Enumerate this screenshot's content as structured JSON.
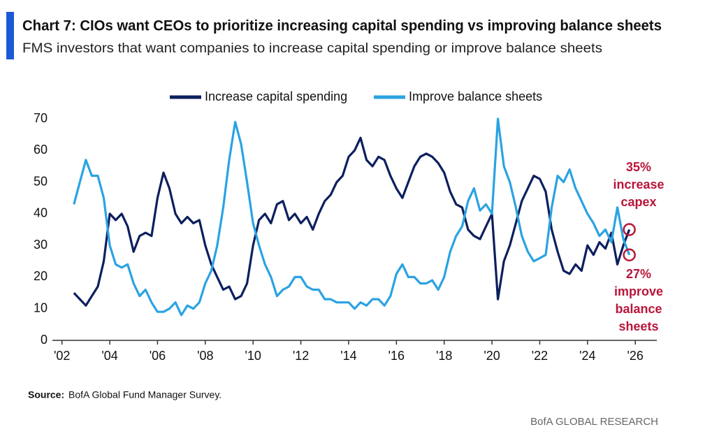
{
  "chart_data": {
    "type": "line",
    "title": "Chart 7: CIOs want CEOs to prioritize increasing capital spending vs improving balance sheets",
    "subtitle": "FMS investors that want companies to increase capital spending or improve balance sheets",
    "x": [
      2002.5,
      2002.75,
      2003,
      2003.25,
      2003.5,
      2003.75,
      2004,
      2004.25,
      2004.5,
      2004.75,
      2005,
      2005.25,
      2005.5,
      2005.75,
      2006,
      2006.25,
      2006.5,
      2006.75,
      2007,
      2007.25,
      2007.5,
      2007.75,
      2008,
      2008.25,
      2008.5,
      2008.75,
      2009,
      2009.25,
      2009.5,
      2009.75,
      2010,
      2010.25,
      2010.5,
      2010.75,
      2011,
      2011.25,
      2011.5,
      2011.75,
      2012,
      2012.25,
      2012.5,
      2012.75,
      2013,
      2013.25,
      2013.5,
      2013.75,
      2014,
      2014.25,
      2014.5,
      2014.75,
      2015,
      2015.25,
      2015.5,
      2015.75,
      2016,
      2016.25,
      2016.5,
      2016.75,
      2017,
      2017.25,
      2017.5,
      2017.75,
      2018,
      2018.25,
      2018.5,
      2018.75,
      2019,
      2019.25,
      2019.5,
      2019.75,
      2020,
      2020.25,
      2020.5,
      2020.75,
      2021,
      2021.25,
      2021.5,
      2021.75,
      2022,
      2022.25,
      2022.5,
      2022.75,
      2023,
      2023.25,
      2023.5,
      2023.75,
      2024,
      2024.25,
      2024.5,
      2024.75,
      2025,
      2025.25,
      2025.5,
      2025.75
    ],
    "series": [
      {
        "name": "Increase capital spending",
        "color": "#0c1f5e",
        "values": [
          15,
          13,
          11,
          14,
          17,
          25,
          40,
          38,
          40,
          36,
          28,
          33,
          34,
          33,
          45,
          53,
          48,
          40,
          37,
          39,
          37,
          38,
          30,
          24,
          20,
          16,
          17,
          13,
          14,
          18,
          30,
          38,
          40,
          37,
          43,
          44,
          38,
          40,
          37,
          39,
          35,
          40,
          44,
          46,
          50,
          52,
          58,
          60,
          64,
          57,
          55,
          58,
          57,
          52,
          48,
          45,
          50,
          55,
          58,
          59,
          58,
          56,
          53,
          47,
          43,
          42,
          35,
          33,
          32,
          36,
          40,
          13,
          25,
          30,
          37,
          44,
          48,
          52,
          51,
          47,
          35,
          28,
          22,
          21,
          24,
          22,
          30,
          27,
          31,
          29,
          34,
          24,
          30,
          35
        ]
      },
      {
        "name": "Improve balance sheets",
        "color": "#2aa3e2",
        "values": [
          43,
          50,
          57,
          52,
          52,
          45,
          30,
          24,
          23,
          24,
          18,
          14,
          16,
          12,
          9,
          9,
          10,
          12,
          8,
          11,
          10,
          12,
          18,
          22,
          30,
          42,
          57,
          69,
          62,
          50,
          37,
          30,
          24,
          20,
          14,
          16,
          17,
          20,
          20,
          17,
          16,
          16,
          13,
          13,
          12,
          12,
          12,
          10,
          12,
          11,
          13,
          13,
          11,
          14,
          21,
          24,
          20,
          20,
          18,
          18,
          19,
          16,
          20,
          28,
          33,
          36,
          44,
          48,
          41,
          43,
          40,
          70,
          55,
          50,
          42,
          33,
          28,
          25,
          26,
          27,
          42,
          52,
          50,
          54,
          48,
          44,
          40,
          37,
          33,
          35,
          31,
          42,
          32,
          27
        ]
      }
    ],
    "xlim": [
      2001.6,
      2026.9
    ],
    "xticks": [
      {
        "value": 2002,
        "label": "'02"
      },
      {
        "value": 2004,
        "label": "'04"
      },
      {
        "value": 2006,
        "label": "'06"
      },
      {
        "value": 2008,
        "label": "'08"
      },
      {
        "value": 2010,
        "label": "'10"
      },
      {
        "value": 2012,
        "label": "'12"
      },
      {
        "value": 2014,
        "label": "'14"
      },
      {
        "value": 2016,
        "label": "'16"
      },
      {
        "value": 2018,
        "label": "'18"
      },
      {
        "value": 2020,
        "label": "'20"
      },
      {
        "value": 2022,
        "label": "'22"
      },
      {
        "value": 2024,
        "label": "'24"
      },
      {
        "value": 2026,
        "label": "'26"
      }
    ],
    "ylim": [
      0,
      70
    ],
    "yticks": [
      0,
      10,
      20,
      30,
      40,
      50,
      60,
      70
    ],
    "annotations": [
      {
        "lines": [
          "35%",
          "increase",
          "capex"
        ],
        "color": "#b8163a"
      },
      {
        "lines": [
          "27%",
          "improve",
          "balance",
          "sheets"
        ],
        "color": "#b8163a"
      }
    ],
    "source_label": "Source:",
    "source": "BofA Global Fund Manager Survey.",
    "footer": "BofA GLOBAL RESEARCH"
  }
}
